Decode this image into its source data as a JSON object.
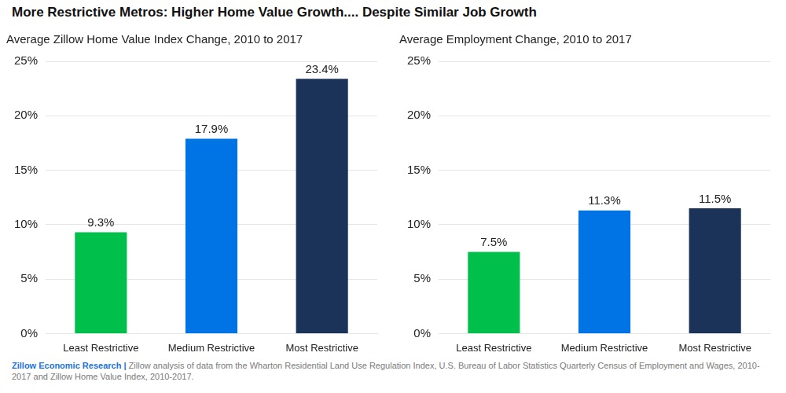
{
  "title": "More Restrictive Metros: Higher Home Value Growth.... Despite Similar Job Growth",
  "source_label": "Zillow Economic Research |",
  "source_text": "Zillow analysis of data from the Wharton Residential Land Use Regulation Index, U.S. Bureau of Labor Statistics Quarterly Census of Employment and Wages, 2010-2017 and Zillow Home Value Index, 2010-2017.",
  "chart_data": [
    {
      "type": "bar",
      "title": "Average Zillow Home Value Index Change, 2010 to 2017",
      "categories": [
        "Least Restrictive",
        "Medium Restrictive",
        "Most Restrictive"
      ],
      "values": [
        9.3,
        17.9,
        23.4
      ],
      "value_labels": [
        "9.3%",
        "17.9%",
        "23.4%"
      ],
      "colors": [
        "#00c04b",
        "#0074e4",
        "#1c3359"
      ],
      "ylim": [
        0,
        25
      ],
      "yticks": [
        {
          "value": 0,
          "label": "0%"
        },
        {
          "value": 5,
          "label": "5%"
        },
        {
          "value": 10,
          "label": "10%"
        },
        {
          "value": 15,
          "label": "15%"
        },
        {
          "value": 20,
          "label": "20%"
        },
        {
          "value": 25,
          "label": "25%"
        }
      ],
      "grid": true,
      "data_labels": true
    },
    {
      "type": "bar",
      "title": "Average Employment Change, 2010 to 2017",
      "categories": [
        "Least Restrictive",
        "Medium Restrictive",
        "Most Restrictive"
      ],
      "values": [
        7.5,
        11.3,
        11.5
      ],
      "value_labels": [
        "7.5%",
        "11.3%",
        "11.5%"
      ],
      "colors": [
        "#00c04b",
        "#0074e4",
        "#1c3359"
      ],
      "ylim": [
        0,
        25
      ],
      "yticks": [
        {
          "value": 0,
          "label": "0%"
        },
        {
          "value": 5,
          "label": "5%"
        },
        {
          "value": 10,
          "label": "10%"
        },
        {
          "value": 15,
          "label": "15%"
        },
        {
          "value": 20,
          "label": "20%"
        },
        {
          "value": 25,
          "label": "25%"
        }
      ],
      "grid": true,
      "data_labels": true
    }
  ]
}
